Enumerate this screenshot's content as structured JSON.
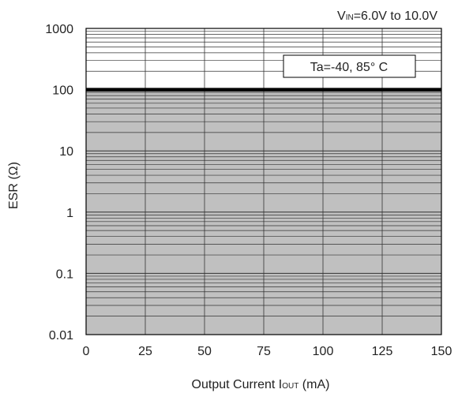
{
  "chart_data": {
    "type": "area",
    "title": "",
    "annotation_top_right": {
      "prefix": "V",
      "sub": "IN",
      "suffix": "=6.0V to 10.0V"
    },
    "legend_box": "Ta=-40, 85° C",
    "xlabel": {
      "prefix": "Output  Current I",
      "sub": "OUT",
      "suffix": " (mA)"
    },
    "ylabel": "ESR (Ω)",
    "x_ticks": [
      0,
      25,
      50,
      75,
      100,
      125,
      150
    ],
    "y_tick_labels": [
      "0.01",
      "0.1",
      "1",
      "10",
      "100",
      "1000"
    ],
    "y_scale": "log",
    "xlim": [
      0,
      150
    ],
    "ylim": [
      0.01,
      1000
    ],
    "grid": true,
    "series": [
      {
        "x": [
          0,
          150
        ],
        "y": [
          100,
          100
        ],
        "style": "boundary line",
        "region_below": "shaded stable region"
      }
    ],
    "colors": {
      "shaded_region": "#c0c0c0",
      "boundary": "#000000",
      "grid": "#333333",
      "background": "#ffffff"
    }
  }
}
